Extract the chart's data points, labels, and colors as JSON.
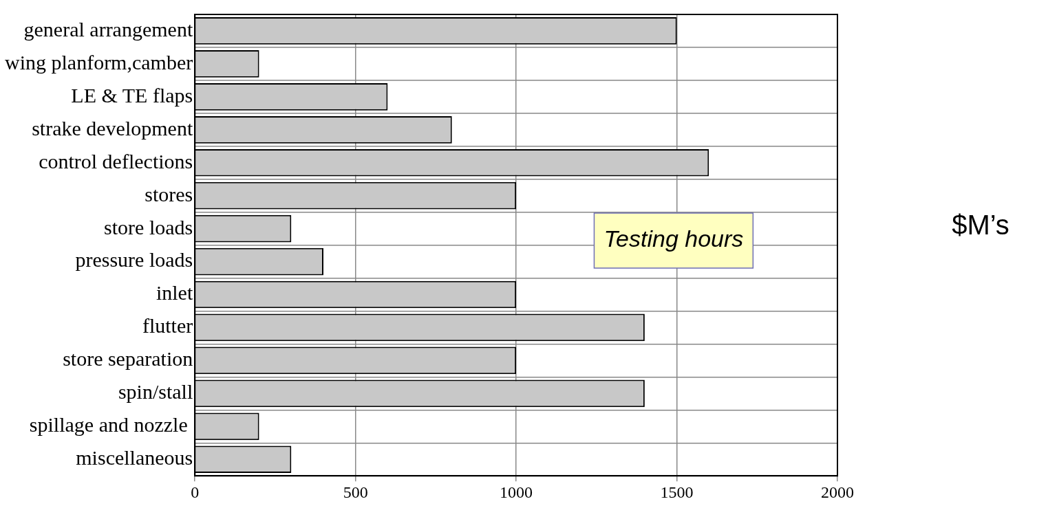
{
  "chart_data": {
    "type": "bar",
    "orientation": "horizontal",
    "categories": [
      "general arrangement",
      "wing planform,camber",
      "LE & TE flaps",
      "strake development",
      "control deflections",
      "stores",
      "store loads",
      "pressure loads",
      "inlet",
      "flutter",
      "store separation",
      "spin/stall",
      "spillage and nozzle ",
      "miscellaneous"
    ],
    "values": [
      1500,
      200,
      600,
      800,
      1600,
      1000,
      300,
      400,
      1000,
      1400,
      1000,
      1400,
      200,
      300
    ],
    "color": "#c8c8c8",
    "xlim": [
      0,
      2000
    ],
    "xticks": [
      0,
      500,
      1000,
      1500,
      2000
    ],
    "grid": true,
    "legend": false,
    "annotations": [
      "Testing hours",
      "$M’s"
    ]
  }
}
